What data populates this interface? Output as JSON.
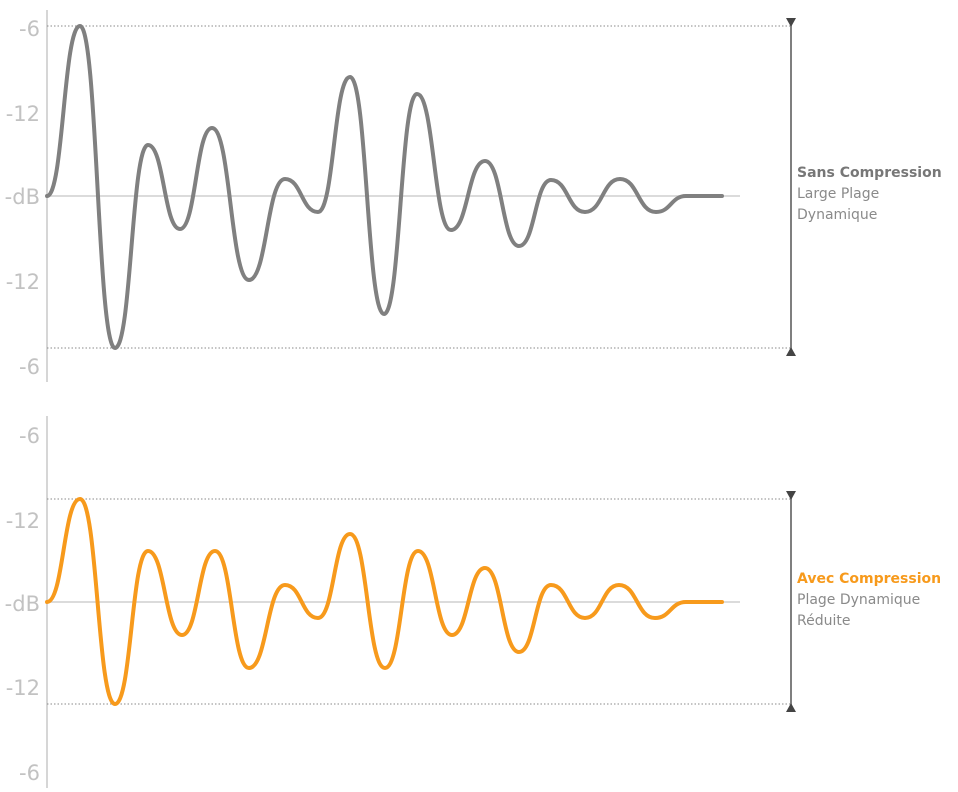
{
  "colors": {
    "top_wave": "#808080",
    "bottom_wave": "#f79a1c",
    "axis": "#c8c8c8",
    "baseline": "#cfcfcf",
    "bracket": "#555555"
  },
  "top_panel": {
    "tick_labels": [
      "-6",
      "-12",
      "-dB",
      "-12",
      "-6"
    ],
    "legend": {
      "title": "Sans Compression",
      "line1": "Large Plage",
      "line2": "Dynamique"
    }
  },
  "bottom_panel": {
    "tick_labels": [
      "-6",
      "-12",
      "-dB",
      "-12",
      "-6"
    ],
    "legend": {
      "title": "Avec Compression",
      "line1": "Plage Dynamique",
      "line2": "Réduite"
    }
  }
}
